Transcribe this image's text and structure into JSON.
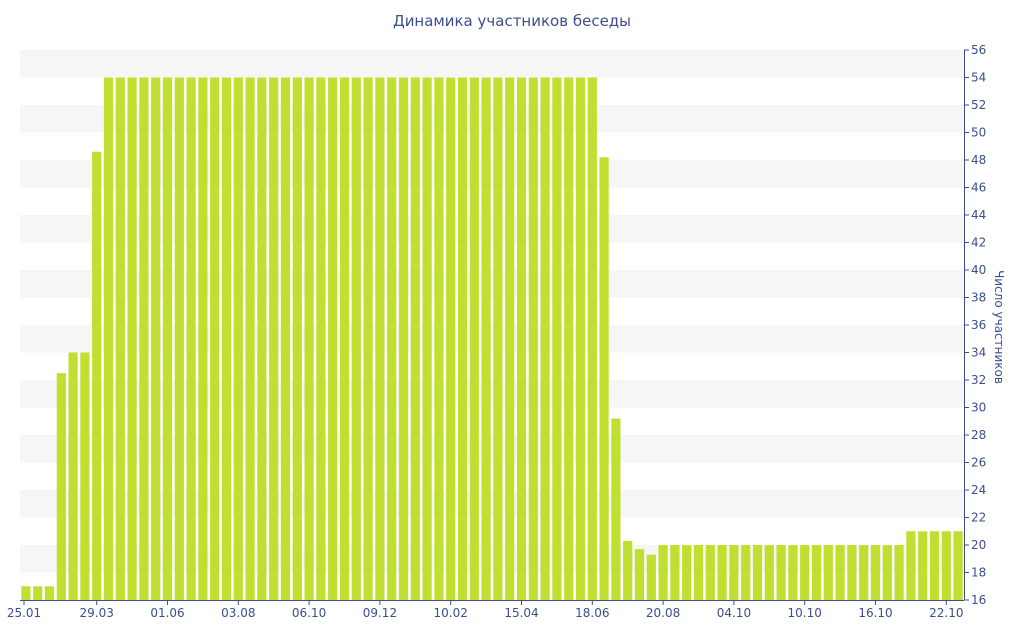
{
  "chart_data": {
    "type": "bar",
    "title": "Динамика участников беседы",
    "xlabel": "",
    "ylabel": "Число участников",
    "ylim": [
      16,
      56
    ],
    "y_ticks": [
      16,
      18,
      20,
      22,
      24,
      26,
      28,
      30,
      32,
      34,
      36,
      38,
      40,
      42,
      44,
      46,
      48,
      50,
      52,
      54,
      56
    ],
    "y_axis_side": "right",
    "grid": "alternating horizontal bands",
    "bar_color": "#c0e031",
    "x_tick_labels": [
      {
        "label": "25.01",
        "index": 0
      },
      {
        "label": "29.03",
        "index": 6
      },
      {
        "label": "01.06",
        "index": 12
      },
      {
        "label": "03.08",
        "index": 18
      },
      {
        "label": "06.10",
        "index": 24
      },
      {
        "label": "09.12",
        "index": 30
      },
      {
        "label": "10.02",
        "index": 36
      },
      {
        "label": "15.04",
        "index": 42
      },
      {
        "label": "18.06",
        "index": 48
      },
      {
        "label": "20.08",
        "index": 54
      },
      {
        "label": "04.10",
        "index": 60
      },
      {
        "label": "10.10",
        "index": 66
      },
      {
        "label": "16.10",
        "index": 72
      },
      {
        "label": "22.10",
        "index": 78
      }
    ],
    "values": [
      17,
      17,
      17,
      32.5,
      34,
      34,
      48.6,
      54,
      54,
      54,
      54,
      54,
      54,
      54,
      54,
      54,
      54,
      54,
      54,
      54,
      54,
      54,
      54,
      54,
      54,
      54,
      54,
      54,
      54,
      54,
      54,
      54,
      54,
      54,
      54,
      54,
      54,
      54,
      54,
      54,
      54,
      54,
      54,
      54,
      54,
      54,
      54,
      54,
      54,
      48.2,
      29.2,
      20.3,
      19.7,
      19.3,
      20,
      20,
      20,
      20,
      20,
      20,
      20,
      20,
      20,
      20,
      20,
      20,
      20,
      20,
      20,
      20,
      20,
      20,
      20,
      20,
      20,
      21,
      21,
      21,
      21,
      21
    ]
  }
}
